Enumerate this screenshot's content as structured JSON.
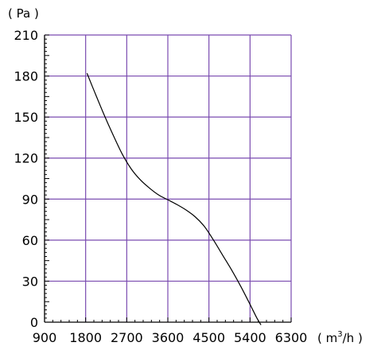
{
  "chart_data": {
    "type": "line",
    "y_unit": "( Pa )",
    "x_unit": {
      "open": "( m",
      "sup": "3",
      "close": "/h )"
    },
    "xlim": [
      900,
      6300
    ],
    "ylim": [
      0,
      210
    ],
    "x_ticks": [
      900,
      1800,
      2700,
      3600,
      4500,
      5400,
      6300
    ],
    "y_ticks": [
      0,
      30,
      60,
      90,
      120,
      150,
      180,
      210
    ],
    "grid": true,
    "colors": {
      "grid": "#7a4bb0",
      "curve": "#000000",
      "axis": "#000000"
    },
    "series": [
      {
        "x": [
          1830,
          2000,
          2200,
          2400,
          2600,
          2800,
          3000,
          3200,
          3400,
          3600,
          3800,
          4000,
          4200,
          4400,
          4600,
          4800,
          5000,
          5200,
          5400,
          5550,
          5640
        ],
        "y": [
          182,
          168,
          152,
          137,
          123,
          112,
          104,
          98,
          93,
          89.5,
          86,
          82,
          77,
          70,
          60,
          49,
          38,
          26,
          13,
          3,
          -2
        ]
      }
    ]
  }
}
